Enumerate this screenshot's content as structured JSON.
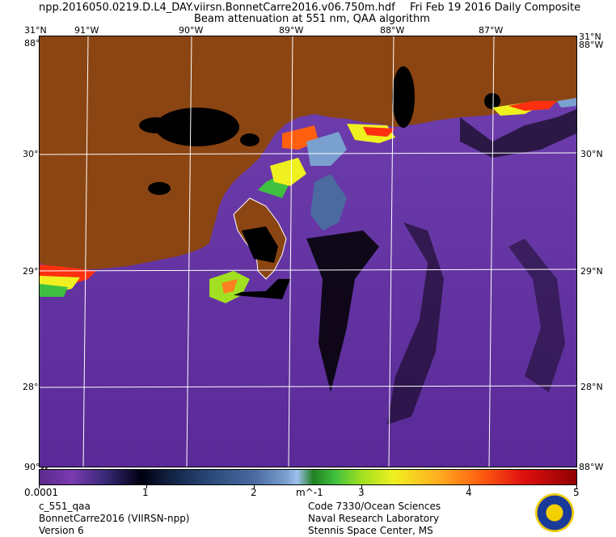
{
  "header": {
    "filename": "npp.2016050.0219.D.L4_DAY.viirsn.BonnetCarre2016.v06.750m.hdf",
    "date": "Fri Feb 19 2016 Daily Composite",
    "product": "Beam attenuation at 551 nm, QAA algorithm"
  },
  "map": {
    "top_labels": [
      "31°N",
      "91°W",
      "90°W",
      "89°W",
      "88°W",
      "87°W",
      "31°N"
    ],
    "corner_labels": [
      "88°W",
      "88°W",
      "90°W",
      "88°W"
    ],
    "left_lat_labels": [
      "30°N",
      "29°N",
      "28°N"
    ],
    "right_lat_labels": [
      "30°N",
      "29°N",
      "28°N"
    ],
    "colors": {
      "ocean": "#6a3aa8",
      "land": "#8b4513",
      "grid": "#ffffff"
    }
  },
  "colorbar": {
    "tick_labels": [
      "0.0001",
      "1",
      "2",
      "m^-1",
      "3",
      "4",
      "5"
    ],
    "values": [
      0.0001,
      1,
      2,
      3,
      4,
      5
    ],
    "units": "m^-1"
  },
  "footer": {
    "left": [
      "c_551_qaa",
      "BonnetCarre2016 (VIIRSN-npp)",
      "Version 6"
    ],
    "right": [
      "Code 7330/Ocean Sciences",
      "Naval Research Laboratory",
      "Stennis Space Center, MS"
    ]
  },
  "logo": {
    "name": "nrl-seal-icon"
  }
}
